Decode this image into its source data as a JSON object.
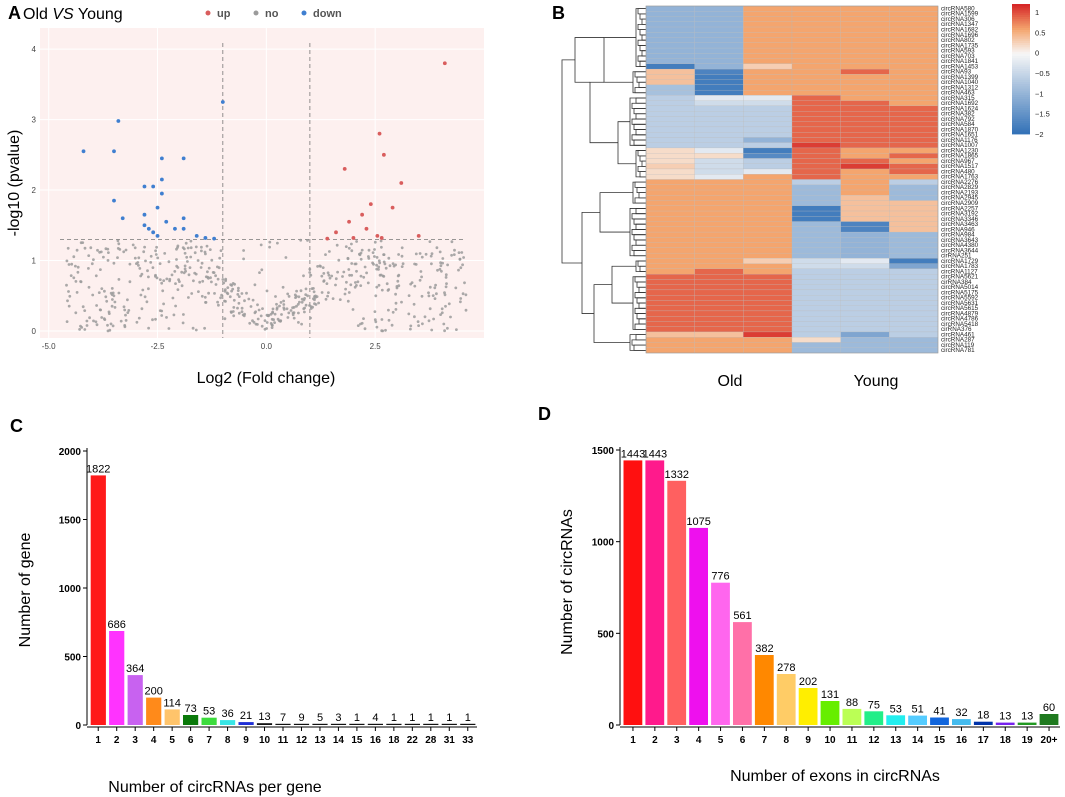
{
  "panels": {
    "a": "A",
    "b": "B",
    "c": "C",
    "d": "D"
  },
  "colors": {
    "volcano_bg": "#fdf0ef",
    "up": "#d95d5d",
    "no": "#9b9b9b",
    "down": "#3f7fd0",
    "heat_low": "#2f6fb6",
    "heat_mid": "#f7f7f7",
    "heat_high": "#d62828"
  },
  "chart_data": [
    {
      "type": "scatter",
      "title_prefix": "Old",
      "title_vs": "VS",
      "title_suffix": "Young",
      "legend": [
        {
          "label": "up",
          "color": "#d95d5d"
        },
        {
          "label": "no",
          "color": "#9b9b9b"
        },
        {
          "label": "down",
          "color": "#3f7fd0"
        }
      ],
      "xlabel": "Log2 (Fold change)",
      "ylabel": "-log10 (pvalue)",
      "xlim": [
        -5.2,
        5.0
      ],
      "ylim": [
        -0.1,
        4.3
      ],
      "x_ticks": [
        -5,
        -2.5,
        0,
        2.5
      ],
      "x_tick_labels": [
        "-5.0",
        "-2.5",
        "0.0",
        "2.5"
      ],
      "y_ticks": [
        0,
        1,
        2,
        3,
        4
      ],
      "y_tick_labels": [
        "0",
        "1",
        "2",
        "3",
        "4"
      ],
      "fc_threshold": 1,
      "p_threshold": 1.3,
      "up_points": [
        {
          "x": 4.1,
          "y": 3.8
        },
        {
          "x": 2.6,
          "y": 2.8
        },
        {
          "x": 2.7,
          "y": 2.5
        },
        {
          "x": 3.1,
          "y": 2.1
        },
        {
          "x": 1.8,
          "y": 2.3
        },
        {
          "x": 2.4,
          "y": 1.8
        },
        {
          "x": 2.9,
          "y": 1.75
        },
        {
          "x": 2.2,
          "y": 1.65
        },
        {
          "x": 1.9,
          "y": 1.55
        },
        {
          "x": 2.3,
          "y": 1.45
        },
        {
          "x": 2.55,
          "y": 1.35
        },
        {
          "x": 1.6,
          "y": 1.4
        },
        {
          "x": 3.5,
          "y": 1.35
        },
        {
          "x": 2.0,
          "y": 1.32
        },
        {
          "x": 2.65,
          "y": 1.32
        },
        {
          "x": 1.4,
          "y": 1.31
        }
      ],
      "down_points": [
        {
          "x": -4.2,
          "y": 2.55
        },
        {
          "x": -3.5,
          "y": 2.55
        },
        {
          "x": -3.4,
          "y": 2.98
        },
        {
          "x": -1.0,
          "y": 3.25
        },
        {
          "x": -2.4,
          "y": 2.45
        },
        {
          "x": -1.9,
          "y": 2.45
        },
        {
          "x": -2.4,
          "y": 2.15
        },
        {
          "x": -3.5,
          "y": 1.85
        },
        {
          "x": -2.8,
          "y": 2.05
        },
        {
          "x": -2.6,
          "y": 2.05
        },
        {
          "x": -2.4,
          "y": 1.95
        },
        {
          "x": -3.3,
          "y": 1.6
        },
        {
          "x": -2.8,
          "y": 1.65
        },
        {
          "x": -2.5,
          "y": 1.75
        },
        {
          "x": -1.9,
          "y": 1.6
        },
        {
          "x": -2.7,
          "y": 1.45
        },
        {
          "x": -2.3,
          "y": 1.55
        },
        {
          "x": -2.1,
          "y": 1.45
        },
        {
          "x": -1.9,
          "y": 1.45
        },
        {
          "x": -1.6,
          "y": 1.35
        },
        {
          "x": -2.5,
          "y": 1.35
        },
        {
          "x": -1.4,
          "y": 1.32
        },
        {
          "x": -1.2,
          "y": 1.31
        },
        {
          "x": -2.8,
          "y": 1.5
        },
        {
          "x": -2.6,
          "y": 1.4
        }
      ]
    },
    {
      "type": "heatmap",
      "group_labels": [
        "Old",
        "Young"
      ],
      "colorbar_ticks": [
        1,
        0.5,
        0,
        -0.5,
        -1,
        -1.5,
        -2
      ],
      "colorbar_tick_labels": [
        "1",
        "0.5",
        "0",
        "−0.5",
        "−1",
        "−1.5",
        "−2"
      ],
      "columns": 6,
      "rows": [
        {
          "name": "circRNA580",
          "v": [
            -1,
            -1,
            0.6,
            0.6,
            0.6,
            0.6
          ]
        },
        {
          "name": "circRNA1599",
          "v": [
            -1,
            -1,
            0.6,
            0.6,
            0.6,
            0.6
          ]
        },
        {
          "name": "circRNA306",
          "v": [
            -1,
            -1,
            0.6,
            0.6,
            0.6,
            0.6
          ]
        },
        {
          "name": "circRNA1347",
          "v": [
            -1,
            -1,
            0.6,
            0.6,
            0.6,
            0.6
          ]
        },
        {
          "name": "circRNA1682",
          "v": [
            -1,
            -1,
            0.6,
            0.6,
            0.6,
            0.6
          ]
        },
        {
          "name": "circRNA1696",
          "v": [
            -1,
            -1,
            0.6,
            0.6,
            0.6,
            0.6
          ]
        },
        {
          "name": "circRNA802",
          "v": [
            -1,
            -1,
            0.6,
            0.6,
            0.6,
            0.6
          ]
        },
        {
          "name": "circRNA1735",
          "v": [
            -1,
            -1,
            0.6,
            0.6,
            0.6,
            0.6
          ]
        },
        {
          "name": "circRNA593",
          "v": [
            -1,
            -1,
            0.6,
            0.6,
            0.6,
            0.6
          ]
        },
        {
          "name": "circRNA703",
          "v": [
            -1,
            -1,
            0.6,
            0.6,
            0.6,
            0.6
          ]
        },
        {
          "name": "circRNA1841",
          "v": [
            -1,
            -1,
            0.6,
            0.6,
            0.6,
            0.6
          ]
        },
        {
          "name": "circRNA1453",
          "v": [
            -1.8,
            -1,
            0.3,
            0.6,
            0.6,
            0.6
          ]
        },
        {
          "name": "circRNA93",
          "v": [
            0.4,
            -1.7,
            0.6,
            0.6,
            0.9,
            0.6
          ]
        },
        {
          "name": "circRNA1399",
          "v": [
            0.4,
            -1.8,
            0.6,
            0.6,
            0.6,
            0.6
          ]
        },
        {
          "name": "circRNA1040",
          "v": [
            0.4,
            -1.8,
            0.6,
            0.6,
            0.6,
            0.6
          ]
        },
        {
          "name": "circRNA1312",
          "v": [
            -0.8,
            -1.8,
            0.6,
            0.6,
            0.6,
            0.6
          ]
        },
        {
          "name": "circRNA463",
          "v": [
            -0.8,
            -1.8,
            0.6,
            0.6,
            0.6,
            0.6
          ]
        },
        {
          "name": "circRNA315",
          "v": [
            -0.6,
            -0.2,
            -0.2,
            0.9,
            0.6,
            0.6
          ]
        },
        {
          "name": "circRNA1692",
          "v": [
            -0.6,
            -0.4,
            -0.4,
            0.9,
            0.9,
            0.6
          ]
        },
        {
          "name": "circRNA1624",
          "v": [
            -0.6,
            -0.6,
            -0.6,
            0.9,
            0.9,
            0.9
          ]
        },
        {
          "name": "circRNA382",
          "v": [
            -0.6,
            -0.6,
            -0.6,
            0.9,
            0.9,
            0.9
          ]
        },
        {
          "name": "circRNA792",
          "v": [
            -0.6,
            -0.6,
            -0.6,
            0.9,
            0.9,
            0.9
          ]
        },
        {
          "name": "circRNA584",
          "v": [
            -0.6,
            -0.6,
            -0.6,
            0.9,
            0.9,
            0.9
          ]
        },
        {
          "name": "circRNA1870",
          "v": [
            -0.6,
            -0.6,
            -0.6,
            0.9,
            0.9,
            0.9
          ]
        },
        {
          "name": "circRNA1651",
          "v": [
            -0.6,
            -0.6,
            -0.6,
            0.9,
            0.9,
            0.9
          ]
        },
        {
          "name": "circRNA1176",
          "v": [
            -0.6,
            -0.6,
            -1,
            0.9,
            0.9,
            0.9
          ]
        },
        {
          "name": "circRNA1007",
          "v": [
            -0.6,
            -0.6,
            -0.6,
            1.1,
            0.9,
            0.9
          ]
        },
        {
          "name": "circRNA1230",
          "v": [
            0.2,
            -0.2,
            -1.8,
            0.9,
            0.6,
            0.6
          ]
        },
        {
          "name": "circRNA1865",
          "v": [
            0.2,
            0.2,
            -1.6,
            0.9,
            0.6,
            0.9
          ]
        },
        {
          "name": "circRNA967",
          "v": [
            0.2,
            -0.4,
            -0.6,
            0.9,
            0.9,
            0.6
          ]
        },
        {
          "name": "circRNA1517",
          "v": [
            0.3,
            -0.4,
            -0.6,
            0.9,
            1.1,
            0.9
          ]
        },
        {
          "name": "circRNA480",
          "v": [
            0.2,
            -0.4,
            -0.2,
            0.9,
            0.6,
            0.9
          ]
        },
        {
          "name": "circRNA1763",
          "v": [
            0.2,
            -0.2,
            0.6,
            0.9,
            0.6,
            0.6
          ]
        },
        {
          "name": "circRNA2276",
          "v": [
            0.6,
            0.6,
            0.6,
            -0.6,
            0.6,
            -0.6
          ]
        },
        {
          "name": "circRNA2829",
          "v": [
            0.6,
            0.6,
            0.6,
            -0.9,
            0.6,
            -0.9
          ]
        },
        {
          "name": "circRNA2193",
          "v": [
            0.6,
            0.6,
            0.6,
            -0.9,
            0.6,
            -0.9
          ]
        },
        {
          "name": "circRNA2945",
          "v": [
            0.6,
            0.6,
            0.6,
            -0.9,
            0.4,
            -0.9
          ]
        },
        {
          "name": "circRNA2909",
          "v": [
            0.6,
            0.6,
            0.6,
            -0.9,
            0.4,
            0.4
          ]
        },
        {
          "name": "circRNA2257",
          "v": [
            0.6,
            0.6,
            0.6,
            -1.8,
            0.4,
            0.4
          ]
        },
        {
          "name": "circRNA3192",
          "v": [
            0.6,
            0.6,
            0.6,
            -1.8,
            0.4,
            0.4
          ]
        },
        {
          "name": "circRNA3346",
          "v": [
            0.6,
            0.6,
            0.6,
            -1.8,
            0.4,
            0.4
          ]
        },
        {
          "name": "circRNA3463",
          "v": [
            0.6,
            0.6,
            0.6,
            -0.9,
            -1.7,
            0.4
          ]
        },
        {
          "name": "circRNA946",
          "v": [
            0.6,
            0.6,
            0.6,
            -0.9,
            -1.7,
            0.4
          ]
        },
        {
          "name": "circRNA984",
          "v": [
            0.6,
            0.6,
            0.6,
            -0.9,
            -1,
            -0.9
          ]
        },
        {
          "name": "circRNA3643",
          "v": [
            0.6,
            0.6,
            0.6,
            -0.9,
            -1,
            -0.9
          ]
        },
        {
          "name": "circRNA4380",
          "v": [
            0.6,
            0.6,
            0.6,
            -0.9,
            -1,
            -0.9
          ]
        },
        {
          "name": "circRNA3644",
          "v": [
            0.6,
            0.6,
            0.6,
            -0.9,
            -1,
            -0.9
          ]
        },
        {
          "name": "cirRNA251",
          "v": [
            0.6,
            0.6,
            0.6,
            -0.9,
            -1,
            -0.9
          ]
        },
        {
          "name": "circRNA1729",
          "v": [
            0.6,
            0.6,
            0.3,
            -0.4,
            -0.2,
            -1.8
          ]
        },
        {
          "name": "circRNA1783",
          "v": [
            0.6,
            0.6,
            0.6,
            -0.4,
            -0.4,
            -1.2
          ]
        },
        {
          "name": "circRNA1127",
          "v": [
            0.6,
            0.9,
            0.6,
            -0.6,
            -0.6,
            -0.6
          ]
        },
        {
          "name": "circRNA5621",
          "v": [
            0.9,
            0.9,
            0.9,
            -0.6,
            -0.6,
            -0.6
          ]
        },
        {
          "name": "cirRNA384",
          "v": [
            0.9,
            0.9,
            0.9,
            -0.6,
            -0.6,
            -0.6
          ]
        },
        {
          "name": "circRNA5014",
          "v": [
            0.9,
            0.9,
            0.9,
            -0.6,
            -0.6,
            -0.6
          ]
        },
        {
          "name": "circRNA5175",
          "v": [
            0.9,
            0.9,
            0.9,
            -0.6,
            -0.6,
            -0.6
          ]
        },
        {
          "name": "circRNA5592",
          "v": [
            0.9,
            0.9,
            0.9,
            -0.6,
            -0.6,
            -0.6
          ]
        },
        {
          "name": "circRNA5631",
          "v": [
            0.9,
            0.9,
            0.9,
            -0.6,
            -0.6,
            -0.6
          ]
        },
        {
          "name": "circRNA5615",
          "v": [
            0.9,
            0.9,
            0.9,
            -0.6,
            -0.6,
            -0.6
          ]
        },
        {
          "name": "circRNA4879",
          "v": [
            0.9,
            0.9,
            0.9,
            -0.6,
            -0.6,
            -0.6
          ]
        },
        {
          "name": "circRNA4786",
          "v": [
            0.9,
            0.9,
            0.9,
            -0.6,
            -0.6,
            -0.6
          ]
        },
        {
          "name": "circRNA5418",
          "v": [
            0.9,
            0.9,
            0.9,
            -0.6,
            -0.6,
            -0.6
          ]
        },
        {
          "name": "cirRNA376",
          "v": [
            0.9,
            0.9,
            0.9,
            -0.6,
            -0.6,
            -0.6
          ]
        },
        {
          "name": "circRNA461",
          "v": [
            0.4,
            0.4,
            1.1,
            -0.6,
            -1.2,
            -0.6
          ]
        },
        {
          "name": "circRNA287",
          "v": [
            0.6,
            0.6,
            0.6,
            0.2,
            -0.9,
            -0.9
          ]
        },
        {
          "name": "circRNA119",
          "v": [
            0.6,
            0.6,
            0.6,
            -0.9,
            -0.9,
            -0.9
          ]
        },
        {
          "name": "circRNA781",
          "v": [
            0.6,
            0.6,
            0.6,
            -0.9,
            -0.9,
            -0.9
          ]
        }
      ]
    },
    {
      "type": "bar",
      "xlabel": "Number of circRNAs per gene",
      "ylabel": "Number of gene",
      "ylim": [
        0,
        2000
      ],
      "y_ticks": [
        0,
        500,
        1000,
        1500,
        2000
      ],
      "categories": [
        "1",
        "2",
        "3",
        "4",
        "5",
        "6",
        "7",
        "8",
        "9",
        "10",
        "11",
        "12",
        "13",
        "14",
        "15",
        "16",
        "18",
        "22",
        "28",
        "31",
        "33"
      ],
      "values": [
        1822,
        686,
        364,
        200,
        114,
        73,
        53,
        36,
        21,
        13,
        7,
        9,
        5,
        3,
        1,
        4,
        1,
        1,
        1,
        1,
        1
      ],
      "bar_colors": [
        "#ff1a1a",
        "#ff33ff",
        "#c862f0",
        "#ff8a1a",
        "#ffc46b",
        "#0b7a0b",
        "#3ddc3d",
        "#39e6e6",
        "#1f2fd6",
        "#111111",
        "#111111",
        "#111111",
        "#111111",
        "#111111",
        "#111111",
        "#111111",
        "#111111",
        "#111111",
        "#111111",
        "#111111",
        "#111111"
      ]
    },
    {
      "type": "bar",
      "xlabel": "Number of exons in circRNAs",
      "ylabel": "Number of circRNAs",
      "ylim": [
        0,
        1500
      ],
      "y_ticks": [
        0,
        500,
        1000,
        1500
      ],
      "categories": [
        "1",
        "2",
        "3",
        "4",
        "5",
        "6",
        "7",
        "8",
        "9",
        "10",
        "11",
        "12",
        "13",
        "14",
        "15",
        "16",
        "17",
        "18",
        "19",
        "20+"
      ],
      "values": [
        1443,
        1443,
        1332,
        1075,
        776,
        561,
        382,
        278,
        202,
        131,
        88,
        75,
        53,
        51,
        41,
        32,
        18,
        13,
        13,
        60
      ],
      "bar_colors": [
        "#ff1010",
        "#ff1a8c",
        "#ff6060",
        "#ee10ee",
        "#ff66ee",
        "#ff70a8",
        "#ff8800",
        "#ffcc66",
        "#ffee00",
        "#66ee00",
        "#bbff55",
        "#22ee88",
        "#22eeee",
        "#55ccff",
        "#1166dd",
        "#44bbee",
        "#0033aa",
        "#7722ee",
        "#229922",
        "#1f7a1f"
      ]
    }
  ]
}
